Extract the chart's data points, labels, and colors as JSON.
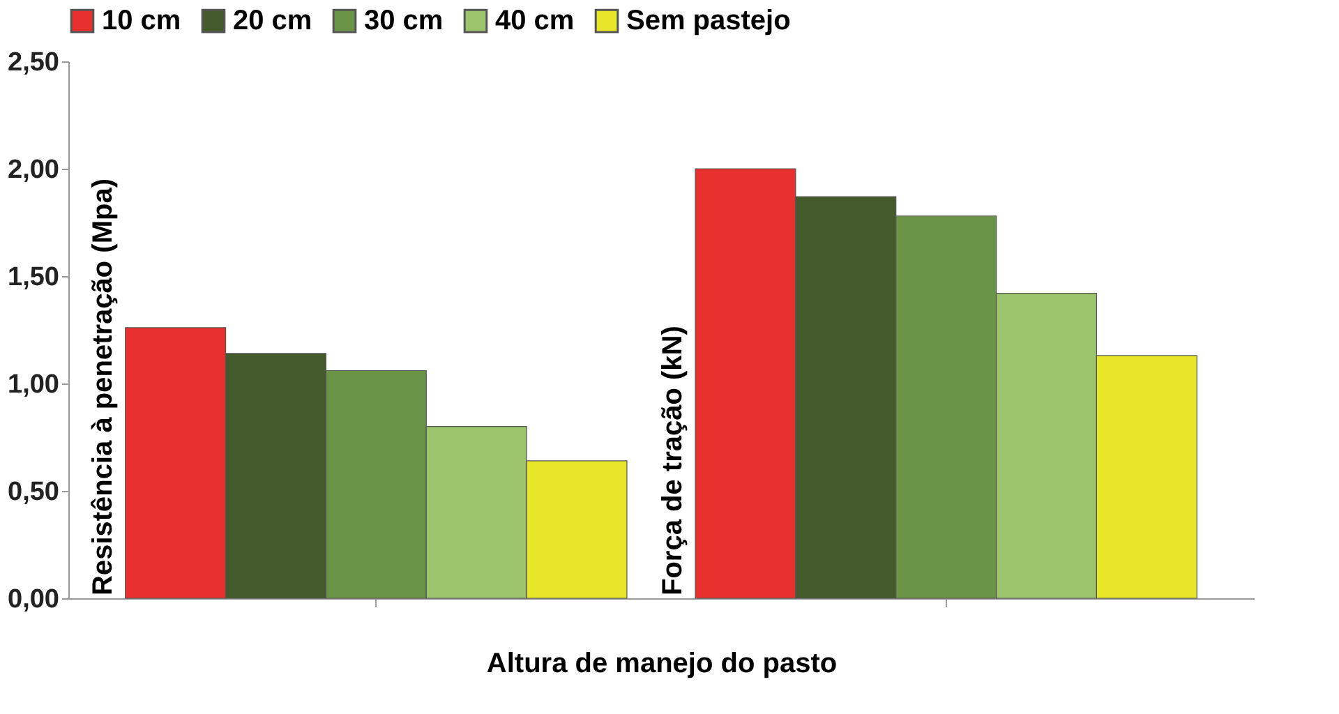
{
  "chart_data": {
    "type": "bar",
    "xlabel": "Altura de manejo do pasto",
    "categories": [
      null,
      null
    ],
    "annotations": [
      "Resistência à penetração (Mpa)",
      "Força de tração (kN)"
    ],
    "series": [
      {
        "name": "10 cm",
        "color": "#e8302e",
        "values": [
          1.26,
          2.0
        ]
      },
      {
        "name": "20 cm",
        "color": "#435a2b",
        "values": [
          1.14,
          1.87
        ]
      },
      {
        "name": "30 cm",
        "color": "#6a9445",
        "values": [
          1.06,
          1.78
        ]
      },
      {
        "name": "40 cm",
        "color": "#9bc46c",
        "values": [
          0.8,
          1.42
        ]
      },
      {
        "name": "Sem pastejo",
        "color": "#e8e628",
        "values": [
          0.64,
          1.13
        ]
      }
    ],
    "ylim": [
      0,
      2.5
    ],
    "yticks": [
      {
        "value": 0,
        "label": "0,00"
      },
      {
        "value": 0.5,
        "label": "0,50"
      },
      {
        "value": 1,
        "label": "1,00"
      },
      {
        "value": 1.5,
        "label": "1,50"
      },
      {
        "value": 2,
        "label": "2,00"
      },
      {
        "value": 2.5,
        "label": "2,50"
      }
    ],
    "grid": false,
    "legend": "top"
  }
}
